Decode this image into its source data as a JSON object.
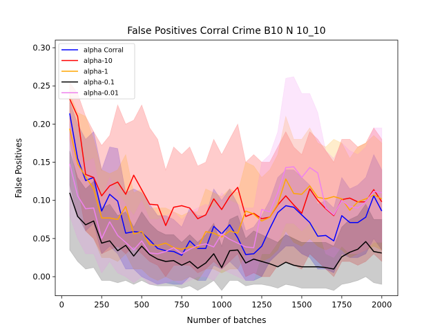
{
  "chart_data": {
    "type": "line",
    "title": "False Positives Corral Crime B10 N 10_10",
    "xlabel": "Number of batches",
    "ylabel": "False Positives",
    "xlim": [
      -40,
      2100
    ],
    "ylim": [
      -0.025,
      0.31
    ],
    "xticks": [
      0,
      250,
      500,
      750,
      1000,
      1250,
      1500,
      1750,
      2000
    ],
    "yticks": [
      0.0,
      0.05,
      0.1,
      0.15,
      0.2,
      0.25,
      0.3
    ],
    "xtick_labels": [
      "0",
      "250",
      "500",
      "750",
      "1000",
      "1250",
      "1500",
      "1750",
      "2000"
    ],
    "ytick_labels": [
      "0.00",
      "0.05",
      "0.10",
      "0.15",
      "0.20",
      "0.25",
      "0.30"
    ],
    "grid": false,
    "legend_position": "upper-left",
    "x": [
      50,
      100,
      150,
      200,
      250,
      300,
      350,
      400,
      450,
      500,
      550,
      600,
      650,
      700,
      750,
      800,
      850,
      900,
      950,
      1000,
      1050,
      1100,
      1150,
      1200,
      1250,
      1300,
      1350,
      1400,
      1450,
      1500,
      1550,
      1600,
      1650,
      1700,
      1750,
      1800,
      1850,
      1900,
      1950,
      2000
    ],
    "series": [
      {
        "name": "alpha Corral",
        "color": "#0000ff",
        "values": [
          0.214,
          0.155,
          0.126,
          0.13,
          0.086,
          0.108,
          0.099,
          0.057,
          0.059,
          0.058,
          0.048,
          0.037,
          0.034,
          0.033,
          0.028,
          0.047,
          0.037,
          0.037,
          0.066,
          0.056,
          0.068,
          0.051,
          0.029,
          0.03,
          0.04,
          0.063,
          0.084,
          0.093,
          0.091,
          0.081,
          0.071,
          0.053,
          0.054,
          0.047,
          0.08,
          0.071,
          0.071,
          0.078,
          0.106,
          0.086
        ],
        "lower": [
          0.12,
          0.08,
          0.06,
          0.07,
          0.03,
          0.04,
          0.03,
          0.01,
          0.01,
          0.0,
          -0.005,
          -0.01,
          -0.008,
          -0.01,
          -0.01,
          0.0,
          -0.005,
          -0.005,
          0.015,
          0.01,
          0.02,
          0.01,
          -0.005,
          -0.005,
          0.0,
          0.02,
          0.03,
          0.04,
          0.04,
          0.03,
          0.025,
          0.01,
          0.01,
          0.005,
          0.03,
          0.025,
          0.025,
          0.03,
          0.05,
          0.035
        ],
        "upper": [
          0.23,
          0.2,
          0.18,
          0.19,
          0.14,
          0.17,
          0.168,
          0.11,
          0.115,
          0.11,
          0.095,
          0.08,
          0.08,
          0.075,
          0.065,
          0.09,
          0.08,
          0.08,
          0.115,
          0.1,
          0.115,
          0.095,
          0.06,
          0.065,
          0.08,
          0.1,
          0.13,
          0.14,
          0.14,
          0.13,
          0.12,
          0.095,
          0.1,
          0.09,
          0.13,
          0.115,
          0.12,
          0.13,
          0.16,
          0.14
        ]
      },
      {
        "name": "alpha-10",
        "color": "#ff0000",
        "values": [
          0.233,
          0.21,
          0.134,
          0.13,
          0.106,
          0.119,
          0.124,
          0.108,
          0.133,
          0.114,
          0.095,
          0.094,
          0.067,
          0.091,
          0.093,
          0.09,
          0.076,
          0.081,
          0.102,
          0.088,
          0.105,
          0.117,
          0.079,
          0.083,
          0.076,
          0.078,
          0.094,
          0.106,
          0.094,
          0.083,
          0.115,
          0.1,
          0.089,
          0.08,
          0.101,
          0.103,
          0.098,
          0.098,
          0.114,
          0.098
        ],
        "lower": [
          0.18,
          0.12,
          0.06,
          0.05,
          0.03,
          0.035,
          0.04,
          0.03,
          0.04,
          0.03,
          0.02,
          0.015,
          0.0,
          0.015,
          0.015,
          0.015,
          0.005,
          0.01,
          0.02,
          0.01,
          0.02,
          0.03,
          0.0,
          0.005,
          0.0,
          0.0,
          0.015,
          0.02,
          0.015,
          0.01,
          0.03,
          0.02,
          0.01,
          0.0,
          0.02,
          0.02,
          0.015,
          0.02,
          0.03,
          0.02
        ],
        "upper": [
          0.255,
          0.24,
          0.21,
          0.19,
          0.172,
          0.185,
          0.225,
          0.2,
          0.205,
          0.225,
          0.195,
          0.18,
          0.14,
          0.17,
          0.16,
          0.17,
          0.145,
          0.15,
          0.18,
          0.16,
          0.18,
          0.2,
          0.15,
          0.16,
          0.15,
          0.15,
          0.17,
          0.19,
          0.17,
          0.16,
          0.19,
          0.18,
          0.165,
          0.15,
          0.18,
          0.18,
          0.17,
          0.175,
          0.195,
          0.18
        ]
      },
      {
        "name": "alpha-1",
        "color": "#ffa500",
        "values": [
          0.194,
          0.148,
          0.131,
          0.115,
          0.077,
          0.077,
          0.075,
          0.092,
          0.056,
          0.059,
          0.042,
          0.041,
          0.044,
          0.038,
          0.036,
          0.039,
          0.038,
          0.059,
          0.057,
          0.052,
          0.06,
          0.057,
          0.086,
          0.082,
          0.073,
          0.078,
          0.095,
          0.128,
          0.109,
          0.108,
          0.119,
          0.104,
          0.102,
          0.105,
          0.102,
          0.087,
          0.098,
          0.102,
          0.107,
          0.102
        ],
        "lower": [
          0.12,
          0.08,
          0.06,
          0.05,
          0.025,
          0.025,
          0.02,
          0.03,
          0.01,
          0.01,
          0.0,
          -0.005,
          0.0,
          -0.005,
          -0.005,
          0.0,
          -0.005,
          0.01,
          0.01,
          0.005,
          0.01,
          0.01,
          0.03,
          0.025,
          0.02,
          0.025,
          0.035,
          0.06,
          0.045,
          0.04,
          0.05,
          0.04,
          0.035,
          0.04,
          0.035,
          0.025,
          0.03,
          0.035,
          0.04,
          0.035
        ],
        "upper": [
          0.24,
          0.215,
          0.21,
          0.18,
          0.14,
          0.135,
          0.14,
          0.16,
          0.11,
          0.115,
          0.09,
          0.09,
          0.09,
          0.085,
          0.08,
          0.085,
          0.085,
          0.115,
          0.11,
          0.105,
          0.115,
          0.11,
          0.15,
          0.145,
          0.13,
          0.14,
          0.16,
          0.21,
          0.18,
          0.18,
          0.195,
          0.175,
          0.17,
          0.18,
          0.175,
          0.155,
          0.17,
          0.175,
          0.185,
          0.175
        ]
      },
      {
        "name": "alpha-0.1",
        "color": "#000000",
        "values": [
          0.11,
          0.079,
          0.068,
          0.073,
          0.044,
          0.047,
          0.034,
          0.041,
          0.027,
          0.04,
          0.029,
          0.023,
          0.02,
          0.021,
          0.015,
          0.02,
          0.011,
          0.018,
          0.03,
          0.012,
          0.034,
          0.035,
          0.018,
          0.023,
          0.02,
          0.017,
          0.013,
          0.019,
          0.015,
          0.013,
          0.013,
          0.013,
          0.012,
          0.01,
          0.026,
          0.032,
          0.036,
          0.046,
          0.033,
          0.031
        ],
        "lower": [
          0.035,
          0.02,
          0.01,
          0.012,
          -0.005,
          -0.005,
          -0.008,
          -0.005,
          -0.01,
          -0.005,
          -0.01,
          -0.012,
          -0.012,
          -0.012,
          -0.015,
          -0.012,
          -0.018,
          -0.012,
          -0.005,
          -0.018,
          -0.005,
          -0.005,
          -0.012,
          -0.01,
          -0.01,
          -0.012,
          -0.015,
          -0.01,
          -0.012,
          -0.015,
          -0.015,
          -0.015,
          -0.015,
          -0.018,
          -0.01,
          -0.008,
          -0.005,
          0.0,
          -0.008,
          -0.01
        ],
        "upper": [
          0.165,
          0.13,
          0.115,
          0.125,
          0.09,
          0.095,
          0.08,
          0.085,
          0.065,
          0.085,
          0.07,
          0.06,
          0.055,
          0.055,
          0.045,
          0.055,
          0.045,
          0.055,
          0.07,
          0.04,
          0.075,
          0.08,
          0.05,
          0.06,
          0.055,
          0.05,
          0.045,
          0.055,
          0.05,
          0.045,
          0.045,
          0.045,
          0.045,
          0.04,
          0.065,
          0.075,
          0.08,
          0.095,
          0.075,
          0.075
        ]
      },
      {
        "name": "alpha-0.01",
        "color": "#ee82ee",
        "values": [
          0.148,
          0.106,
          0.089,
          0.09,
          0.05,
          0.072,
          0.054,
          0.045,
          0.035,
          0.047,
          0.031,
          0.03,
          0.033,
          0.038,
          0.03,
          0.036,
          0.041,
          0.043,
          0.039,
          0.056,
          0.049,
          0.044,
          0.039,
          0.038,
          0.088,
          0.085,
          0.11,
          0.143,
          0.144,
          0.13,
          0.143,
          0.136,
          0.09,
          0.081,
          0.1,
          0.092,
          0.09,
          0.098,
          0.112,
          0.11
        ],
        "lower": [
          0.08,
          0.05,
          0.03,
          0.03,
          0.005,
          0.02,
          0.005,
          0.0,
          -0.008,
          0.0,
          -0.01,
          -0.01,
          -0.008,
          -0.005,
          -0.01,
          -0.005,
          0.0,
          0.0,
          -0.005,
          0.01,
          0.005,
          0.0,
          -0.005,
          -0.005,
          0.03,
          0.03,
          0.045,
          0.07,
          0.07,
          0.06,
          0.07,
          0.065,
          0.03,
          0.025,
          0.04,
          0.03,
          0.03,
          0.035,
          0.045,
          0.045
        ],
        "upper": [
          0.215,
          0.165,
          0.15,
          0.155,
          0.1,
          0.13,
          0.11,
          0.095,
          0.08,
          0.1,
          0.075,
          0.075,
          0.08,
          0.085,
          0.075,
          0.085,
          0.09,
          0.095,
          0.09,
          0.11,
          0.1,
          0.095,
          0.09,
          0.09,
          0.15,
          0.16,
          0.19,
          0.26,
          0.262,
          0.24,
          0.24,
          0.215,
          0.165,
          0.155,
          0.175,
          0.165,
          0.16,
          0.17,
          0.195,
          0.195
        ]
      }
    ]
  }
}
